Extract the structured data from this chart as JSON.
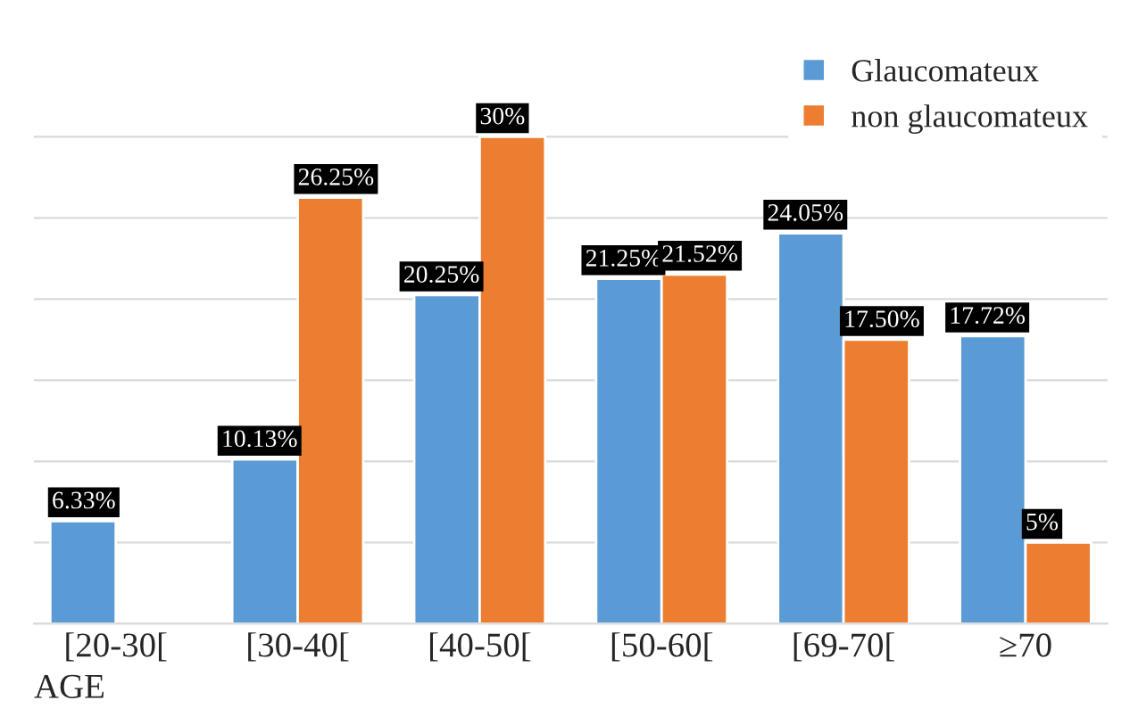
{
  "chart_data": {
    "type": "bar",
    "xlabel": "AGE",
    "categories": [
      "[20-30[",
      "[30-40[",
      "[40-50[",
      "[50-60[",
      "[69-70[",
      "≥70"
    ],
    "series": [
      {
        "name": "Glaucomateux",
        "color": "#5b9bd5",
        "values": [
          6.33,
          10.13,
          20.25,
          21.25,
          24.05,
          17.72
        ],
        "value_labels": [
          "6.33%",
          "10.13%",
          "20.25%",
          "21.25%",
          "24.05%",
          "17.72%"
        ]
      },
      {
        "name": "non glaucomateux",
        "color": "#ed7d31",
        "values": [
          null,
          26.25,
          30,
          21.52,
          17.5,
          5
        ],
        "value_labels": [
          null,
          "26.25%",
          "30%",
          "21.52%",
          "17.50%",
          "5%"
        ]
      }
    ],
    "relative": false,
    "ylim": [
      0,
      36
    ],
    "yticks": [
      {
        "value": 0,
        "label": null
      },
      {
        "value": 5,
        "label": null
      },
      {
        "value": 10,
        "label": null
      },
      {
        "value": 15,
        "label": null
      },
      {
        "value": 20,
        "label": null
      },
      {
        "value": 25,
        "label": null
      },
      {
        "value": 30,
        "label": null
      }
    ],
    "grid": "y",
    "legend": "top right",
    "tick_labels": "x"
  }
}
